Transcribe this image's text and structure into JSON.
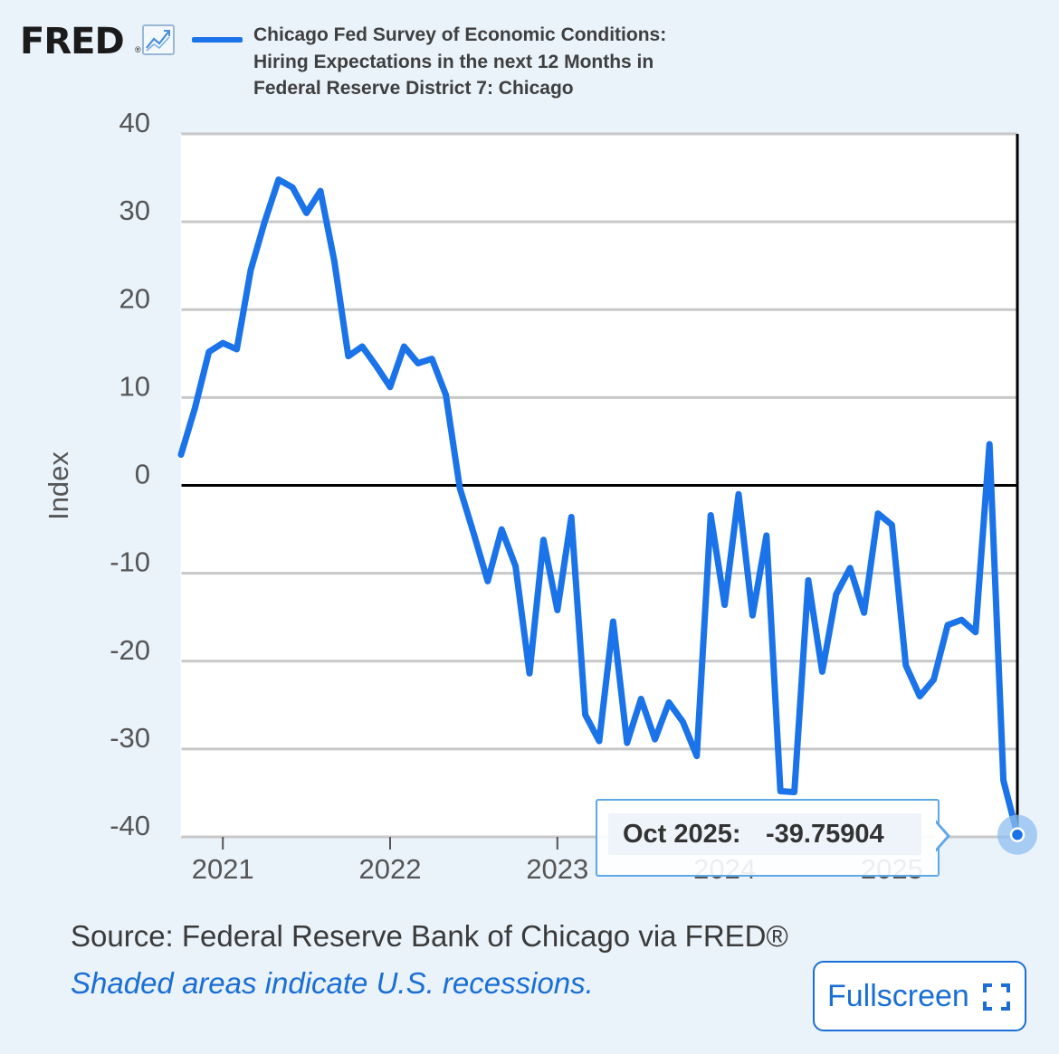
{
  "header": {
    "logo_text": "FRED",
    "logo_reg": "®",
    "logo_icon": "line-chart-icon",
    "legend_lines": [
      "Chicago Fed Survey of Economic Conditions:",
      "Hiring Expectations in the next 12 Months in",
      "Federal Reserve District 7: Chicago"
    ]
  },
  "tooltip": {
    "date": "Oct 2025:",
    "value": "-39.75904"
  },
  "footer": {
    "source": "Source: Federal Reserve Bank of Chicago via FRED®",
    "recession_note": "Shaded areas indicate U.S. recessions.",
    "fullscreen_label": "Fullscreen",
    "fullscreen_icon": "expand-icon"
  },
  "colors": {
    "series": "#1a73e8",
    "background": "#eaf2fa",
    "grid": "#c8c8c8",
    "accent": "#1a6fd6"
  },
  "chart_data": {
    "type": "line",
    "title": "Chicago Fed Survey of Economic Conditions: Hiring Expectations in the next 12 Months in Federal Reserve District 7: Chicago",
    "ylabel": "Index",
    "xlabel": "",
    "ylim": [
      -40,
      40
    ],
    "yticks": [
      "40",
      "30",
      "20",
      "10",
      "0",
      "-10",
      "-20",
      "-30",
      "-40"
    ],
    "ytick_values": [
      40,
      30,
      20,
      10,
      0,
      -10,
      -20,
      -30,
      -40
    ],
    "xticks": [
      "2021",
      "2022",
      "2023",
      "2024",
      "2025"
    ],
    "xtick_years": [
      2021,
      2022,
      2023,
      2024,
      2025
    ],
    "x_start": "2020-10",
    "x_end": "2025-10",
    "grid": true,
    "series": [
      {
        "name": "Hiring Expectations in the next 12 Months",
        "x": [
          "2020-10",
          "2020-11",
          "2020-12",
          "2021-01",
          "2021-02",
          "2021-03",
          "2021-04",
          "2021-05",
          "2021-06",
          "2021-07",
          "2021-08",
          "2021-09",
          "2021-10",
          "2021-11",
          "2021-12",
          "2022-01",
          "2022-02",
          "2022-03",
          "2022-04",
          "2022-05",
          "2022-06",
          "2022-07",
          "2022-08",
          "2022-09",
          "2022-10",
          "2022-11",
          "2022-12",
          "2023-01",
          "2023-02",
          "2023-03",
          "2023-04",
          "2023-05",
          "2023-06",
          "2023-07",
          "2023-08",
          "2023-09",
          "2023-10",
          "2023-11",
          "2023-12",
          "2024-01",
          "2024-02",
          "2024-03",
          "2024-04",
          "2024-05",
          "2024-06",
          "2024-07",
          "2024-08",
          "2024-09",
          "2024-10",
          "2024-11",
          "2024-12",
          "2025-01",
          "2025-02",
          "2025-03",
          "2025-04",
          "2025-05",
          "2025-06",
          "2025-07",
          "2025-08",
          "2025-09",
          "2025-10"
        ],
        "values": [
          3.5,
          8.8,
          15.2,
          16.2,
          15.5,
          24.5,
          30.0,
          34.8,
          33.9,
          31.0,
          33.5,
          25.5,
          14.7,
          15.8,
          13.6,
          11.2,
          15.8,
          13.9,
          14.4,
          10.3,
          -0.3,
          -5.5,
          -10.9,
          -5.0,
          -9.2,
          -21.4,
          -6.2,
          -14.2,
          -3.6,
          -26.1,
          -29.1,
          -15.5,
          -29.3,
          -24.3,
          -28.9,
          -24.7,
          -26.9,
          -30.8,
          -3.4,
          -13.6,
          -1.0,
          -14.8,
          -5.7,
          -34.8,
          -34.9,
          -10.8,
          -21.2,
          -12.4,
          -9.4,
          -14.5,
          -3.2,
          -4.5,
          -20.5,
          -24.0,
          -22.1,
          -15.9,
          -15.3,
          -16.7,
          4.7,
          -33.6,
          -39.75904
        ]
      }
    ],
    "highlight": {
      "date": "Oct 2025",
      "value": -39.75904
    }
  }
}
